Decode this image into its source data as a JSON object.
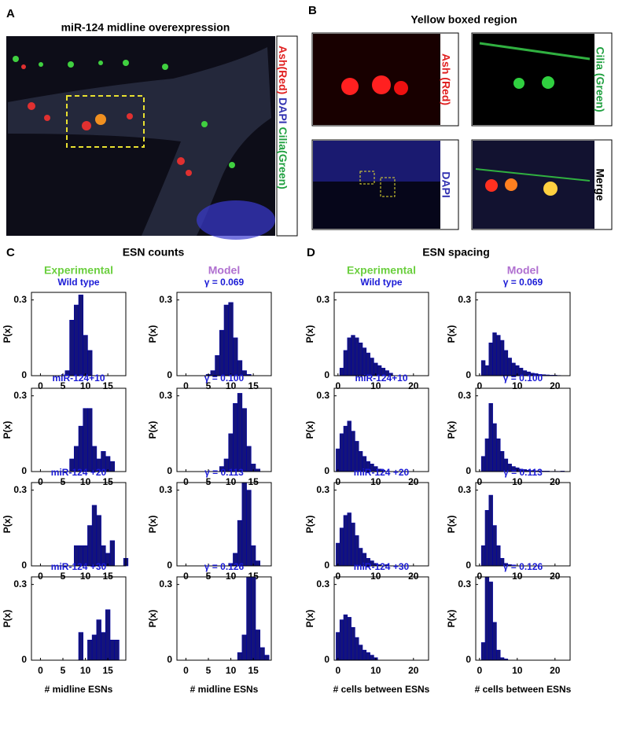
{
  "panels": {
    "a": {
      "label": "A",
      "title": "miR-124 midline overexpression",
      "legend": [
        "Ash(Red)",
        "DAPI",
        "Cilia(Green)"
      ]
    },
    "b": {
      "label": "B",
      "title": "Yellow boxed region",
      "tiles": [
        "Ash (Red)",
        "Cilia (Green)",
        "DAPI",
        "Merge"
      ]
    },
    "c": {
      "label": "C",
      "title": "ESN counts",
      "experimental": "Experimental",
      "model": "Model"
    },
    "d": {
      "label": "D",
      "title": "ESN spacing",
      "experimental": "Experimental",
      "model": "Model"
    }
  },
  "chart_data": [
    {
      "type": "bar",
      "title": "Wild type",
      "ylabel": "P(x)",
      "color": "#14147a",
      "xlim": [
        -2,
        19
      ],
      "ylim": [
        0,
        0.33
      ],
      "xticks": [
        0,
        5,
        10,
        15
      ],
      "yticks": [
        0,
        0.3
      ],
      "x": [
        6,
        7,
        8,
        9,
        10,
        11
      ],
      "values": [
        0.02,
        0.22,
        0.28,
        0.32,
        0.16,
        0.1
      ]
    },
    {
      "type": "bar",
      "title": "γ = 0.069",
      "ylabel": "P(x)",
      "color": "#14147a",
      "xlim": [
        -2,
        19
      ],
      "ylim": [
        0,
        0.33
      ],
      "xticks": [
        0,
        5,
        10,
        15
      ],
      "yticks": [
        0,
        0.3
      ],
      "x": [
        5,
        6,
        7,
        8,
        9,
        10,
        11,
        12,
        13,
        14
      ],
      "values": [
        0.005,
        0.02,
        0.08,
        0.18,
        0.28,
        0.29,
        0.15,
        0.06,
        0.02,
        0.005
      ]
    },
    {
      "type": "bar",
      "title": "Wild type",
      "ylabel": "P(x)",
      "color": "#14147a",
      "xlim": [
        -1,
        24
      ],
      "ylim": [
        0,
        0.33
      ],
      "xticks": [
        0,
        10,
        20
      ],
      "yticks": [
        0,
        0.3
      ],
      "x": [
        1,
        2,
        3,
        4,
        5,
        6,
        7,
        8,
        9,
        10,
        11,
        12,
        13,
        14
      ],
      "values": [
        0.03,
        0.1,
        0.15,
        0.16,
        0.15,
        0.13,
        0.11,
        0.09,
        0.07,
        0.05,
        0.04,
        0.03,
        0.02,
        0.01
      ]
    },
    {
      "type": "bar",
      "title": "γ = 0.069",
      "ylabel": "P(x)",
      "color": "#14147a",
      "xlim": [
        -1,
        24
      ],
      "ylim": [
        0,
        0.33
      ],
      "xticks": [
        0,
        10,
        20
      ],
      "yticks": [
        0,
        0.3
      ],
      "x": [
        1,
        2,
        3,
        4,
        5,
        6,
        7,
        8,
        9,
        10,
        11,
        12,
        13,
        14,
        15,
        16,
        17,
        18,
        19,
        20,
        21
      ],
      "values": [
        0.06,
        0.04,
        0.13,
        0.17,
        0.16,
        0.14,
        0.1,
        0.07,
        0.05,
        0.04,
        0.03,
        0.02,
        0.015,
        0.01,
        0.008,
        0.005,
        0.004,
        0.003,
        0.002,
        0.002,
        0.001
      ]
    },
    {
      "type": "bar",
      "title": "miR-124+10",
      "ylabel": "P(x)",
      "color": "#14147a",
      "xlim": [
        -2,
        19
      ],
      "ylim": [
        0,
        0.33
      ],
      "xticks": [
        0,
        5,
        10,
        15
      ],
      "yticks": [
        0,
        0.3
      ],
      "x": [
        7,
        8,
        9,
        10,
        11,
        12,
        13,
        14,
        15,
        16
      ],
      "values": [
        0.05,
        0.1,
        0.18,
        0.25,
        0.25,
        0.1,
        0.05,
        0.08,
        0.06,
        0.04
      ]
    },
    {
      "type": "bar",
      "title": "γ = 0.100",
      "ylabel": "P(x)",
      "color": "#14147a",
      "xlim": [
        -2,
        19
      ],
      "ylim": [
        0,
        0.33
      ],
      "xticks": [
        0,
        5,
        10,
        15
      ],
      "yticks": [
        0,
        0.3
      ],
      "x": [
        8,
        9,
        10,
        11,
        12,
        13,
        14,
        15,
        16
      ],
      "values": [
        0.02,
        0.05,
        0.15,
        0.27,
        0.31,
        0.25,
        0.1,
        0.03,
        0.01
      ]
    },
    {
      "type": "bar",
      "title": "miR-124+10",
      "ylabel": "P(x)",
      "color": "#14147a",
      "xlim": [
        -1,
        24
      ],
      "ylim": [
        0,
        0.33
      ],
      "xticks": [
        0,
        10,
        20
      ],
      "yticks": [
        0,
        0.3
      ],
      "x": [
        0,
        1,
        2,
        3,
        4,
        5,
        6,
        7,
        8,
        9,
        10,
        11,
        12
      ],
      "values": [
        0.09,
        0.15,
        0.18,
        0.2,
        0.16,
        0.12,
        0.08,
        0.06,
        0.04,
        0.03,
        0.02,
        0.01,
        0.005
      ]
    },
    {
      "type": "bar",
      "title": "γ = 0.100",
      "ylabel": "P(x)",
      "color": "#14147a",
      "xlim": [
        -1,
        24
      ],
      "ylim": [
        0,
        0.33
      ],
      "xticks": [
        0,
        10,
        20
      ],
      "yticks": [
        0,
        0.3
      ],
      "x": [
        1,
        2,
        3,
        4,
        5,
        6,
        7,
        8,
        9,
        10,
        11,
        12,
        13,
        14,
        15,
        16,
        17,
        18,
        19,
        20,
        21,
        22
      ],
      "values": [
        0.06,
        0.13,
        0.27,
        0.19,
        0.13,
        0.08,
        0.05,
        0.03,
        0.02,
        0.015,
        0.01,
        0.008,
        0.005,
        0.004,
        0.003,
        0.003,
        0.002,
        0.002,
        0.001,
        0.001,
        0.001,
        0.002
      ]
    },
    {
      "type": "bar",
      "title": "miR-124 +20",
      "ylabel": "P(x)",
      "color": "#14147a",
      "xlim": [
        -2,
        19
      ],
      "ylim": [
        0,
        0.33
      ],
      "xticks": [
        0,
        5,
        10,
        15
      ],
      "yticks": [
        0,
        0.3
      ],
      "x": [
        8,
        9,
        10,
        11,
        12,
        13,
        14,
        15,
        16,
        19
      ],
      "values": [
        0.08,
        0.08,
        0.08,
        0.16,
        0.24,
        0.2,
        0.08,
        0.05,
        0.1,
        0.03
      ]
    },
    {
      "type": "bar",
      "title": "γ = 0.113",
      "ylabel": "P(x)",
      "color": "#14147a",
      "xlim": [
        -2,
        19
      ],
      "ylim": [
        0,
        0.33
      ],
      "xticks": [
        0,
        5,
        10,
        15
      ],
      "yticks": [
        0,
        0.3
      ],
      "x": [
        10,
        11,
        12,
        13,
        14,
        15,
        16
      ],
      "values": [
        0.01,
        0.05,
        0.18,
        0.33,
        0.3,
        0.08,
        0.02
      ]
    },
    {
      "type": "bar",
      "title": "miR-124 +20",
      "ylabel": "P(x)",
      "color": "#14147a",
      "xlim": [
        -1,
        24
      ],
      "ylim": [
        0,
        0.33
      ],
      "xticks": [
        0,
        10,
        20
      ],
      "yticks": [
        0,
        0.3
      ],
      "x": [
        0,
        1,
        2,
        3,
        4,
        5,
        6,
        7,
        8,
        9,
        10,
        11,
        13
      ],
      "values": [
        0.09,
        0.15,
        0.2,
        0.21,
        0.17,
        0.12,
        0.07,
        0.05,
        0.03,
        0.02,
        0.01,
        0.005,
        0.005
      ]
    },
    {
      "type": "bar",
      "title": "γ = 0.113",
      "ylabel": "P(x)",
      "color": "#14147a",
      "xlim": [
        -1,
        24
      ],
      "ylim": [
        0,
        0.33
      ],
      "xticks": [
        0,
        10,
        20
      ],
      "yticks": [
        0,
        0.3
      ],
      "x": [
        1,
        2,
        3,
        4,
        5,
        6,
        7,
        8
      ],
      "values": [
        0.08,
        0.22,
        0.28,
        0.16,
        0.08,
        0.03,
        0.01,
        0.005
      ]
    },
    {
      "type": "bar",
      "title": "miR-124 +30",
      "ylabel": "P(x)",
      "xlabel": "# midline ESNs",
      "color": "#14147a",
      "xlim": [
        -2,
        19
      ],
      "ylim": [
        0,
        0.33
      ],
      "xticks": [
        0,
        5,
        10,
        15
      ],
      "yticks": [
        0,
        0.3
      ],
      "x": [
        9,
        11,
        12,
        13,
        14,
        15,
        16,
        17
      ],
      "values": [
        0.11,
        0.08,
        0.1,
        0.16,
        0.11,
        0.2,
        0.08,
        0.08
      ]
    },
    {
      "type": "bar",
      "title": "γ = 0.126",
      "ylabel": "P(x)",
      "xlabel": "# midline ESNs",
      "color": "#14147a",
      "xlim": [
        -2,
        19
      ],
      "ylim": [
        0,
        0.33
      ],
      "xticks": [
        0,
        5,
        10,
        15
      ],
      "yticks": [
        0,
        0.3
      ],
      "x": [
        12,
        13,
        14,
        15,
        16,
        17,
        18
      ],
      "values": [
        0.03,
        0.1,
        0.33,
        0.33,
        0.12,
        0.05,
        0.02
      ]
    },
    {
      "type": "bar",
      "title": "miR-124 +30",
      "ylabel": "P(x)",
      "xlabel": "# cells between ESNs",
      "color": "#14147a",
      "xlim": [
        -1,
        24
      ],
      "ylim": [
        0,
        0.33
      ],
      "xticks": [
        0,
        10,
        20
      ],
      "yticks": [
        0,
        0.3
      ],
      "x": [
        0,
        1,
        2,
        3,
        4,
        5,
        6,
        7,
        8,
        9,
        10
      ],
      "values": [
        0.11,
        0.16,
        0.18,
        0.17,
        0.13,
        0.09,
        0.06,
        0.04,
        0.03,
        0.02,
        0.01
      ]
    },
    {
      "type": "bar",
      "title": "γ = 0.126",
      "ylabel": "P(x)",
      "xlabel": "# cells between ESNs",
      "color": "#14147a",
      "xlim": [
        -1,
        24
      ],
      "ylim": [
        0,
        0.33
      ],
      "xticks": [
        0,
        10,
        20
      ],
      "yticks": [
        0,
        0.3
      ],
      "x": [
        1,
        2,
        3,
        4,
        5,
        6,
        7
      ],
      "values": [
        0.07,
        0.33,
        0.31,
        0.15,
        0.04,
        0.01,
        0.005
      ]
    }
  ]
}
